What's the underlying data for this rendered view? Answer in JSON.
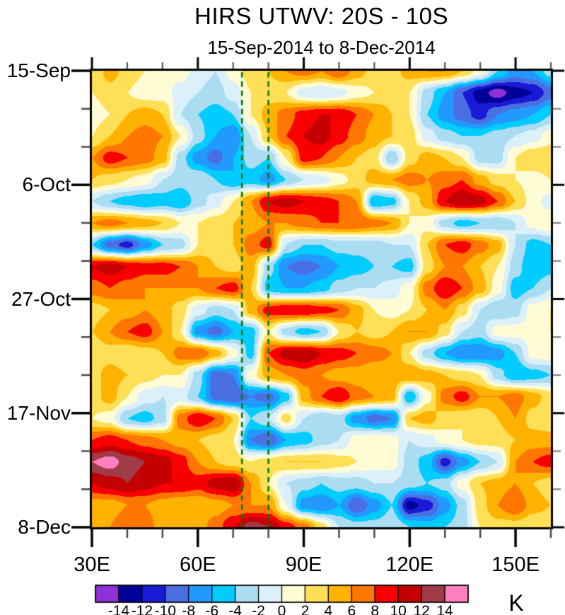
{
  "chart_data": {
    "type": "heatmap",
    "title": "HIRS UTWV: 20S - 10S",
    "subtitle": "15-Sep-2014 to 8-Dec-2014",
    "unit": "K",
    "x_axis": {
      "range_lon_east": [
        30,
        160
      ],
      "major_ticks": [
        {
          "lon": 30,
          "label": "30E"
        },
        {
          "lon": 60,
          "label": "60E"
        },
        {
          "lon": 90,
          "label": "90E"
        },
        {
          "lon": 120,
          "label": "120E"
        },
        {
          "lon": 150,
          "label": "150E"
        }
      ],
      "minor_ticks_lon": [
        40,
        50,
        70,
        80,
        100,
        110,
        130,
        140,
        160
      ]
    },
    "y_axis": {
      "range_days": [
        0,
        84
      ],
      "major_ticks": [
        {
          "day": 0,
          "label": "15-Sep"
        },
        {
          "day": 21,
          "label": "6-Oct"
        },
        {
          "day": 42,
          "label": "27-Oct"
        },
        {
          "day": 63,
          "label": "17-Nov"
        },
        {
          "day": 84,
          "label": "8-Dec"
        }
      ],
      "minor_ticks_days": [
        7,
        14,
        28,
        35,
        49,
        56,
        70,
        77
      ]
    },
    "levels": [
      -14,
      -12,
      -10,
      -8,
      -6,
      -4,
      -2,
      0,
      2,
      4,
      6,
      8,
      10,
      12,
      14
    ],
    "colorbar_labels": [
      "-14",
      "-12",
      "-10",
      "-8",
      "-6",
      "-4",
      "-2",
      "0",
      "2",
      "4",
      "6",
      "8",
      "10",
      "12",
      "14"
    ],
    "colors": [
      "#8F30D8",
      "#000099",
      "#1A1AD6",
      "#4A6FE3",
      "#2299FF",
      "#00CCFF",
      "#AADCF2",
      "#DCF0FA",
      "#FFFBD5",
      "#FFDF55",
      "#FFB300",
      "#FF7700",
      "#F90000",
      "#C40000",
      "#A03C46",
      "#FF7FC0"
    ],
    "legend_position": "bottom",
    "reference_lines": {
      "lons_east": [
        72.5,
        80.0
      ],
      "color": "#007C00",
      "style": "dashed"
    },
    "grid": {
      "lons_east": [
        30,
        35,
        40,
        45,
        50,
        55,
        60,
        65,
        70,
        75,
        80,
        85,
        90,
        95,
        100,
        105,
        110,
        115,
        120,
        125,
        130,
        135,
        140,
        145,
        150,
        155,
        160
      ],
      "dates": [
        "15-Sep",
        "19-Sep",
        "23-Sep",
        "27-Sep",
        "1-Oct",
        "5-Oct",
        "9-Oct",
        "13-Oct",
        "17-Oct",
        "21-Oct",
        "25-Oct",
        "29-Oct",
        "2-Nov",
        "6-Nov",
        "10-Nov",
        "14-Nov",
        "18-Nov",
        "22-Nov",
        "26-Nov",
        "30-Nov",
        "4-Dec",
        "8-Dec"
      ],
      "days": [
        0,
        4,
        8,
        12,
        16,
        20,
        24,
        28,
        32,
        36,
        40,
        44,
        48,
        52,
        56,
        60,
        64,
        68,
        72,
        76,
        80,
        84
      ],
      "values_K": [
        [
          2,
          5,
          3,
          2,
          1,
          1,
          -1,
          -2,
          1,
          3,
          4,
          6,
          7,
          6,
          8,
          5,
          3,
          3,
          5,
          6,
          6,
          4,
          1,
          -4,
          -7,
          -6,
          -3
        ],
        [
          2,
          3,
          2,
          1,
          1,
          -1,
          -2,
          -3,
          -1,
          2,
          3,
          2,
          -1,
          -2,
          -1,
          1,
          2,
          3,
          2,
          -3,
          -6,
          -10,
          -13,
          -15,
          -13,
          -12,
          -9
        ],
        [
          1,
          2,
          4,
          5,
          4,
          -2,
          -4,
          -5,
          -4,
          2,
          5,
          7,
          9,
          10,
          10,
          8,
          6,
          4,
          2,
          -4,
          -7,
          -9,
          -11,
          -8,
          -7,
          -6,
          -4
        ],
        [
          2,
          4,
          6,
          7,
          6,
          2,
          -3,
          -6,
          -8,
          -2,
          4,
          8,
          10,
          11,
          9,
          7,
          5,
          4,
          3,
          -1,
          -3,
          -4,
          -4,
          -3,
          -2,
          -1,
          1
        ],
        [
          6,
          9,
          8,
          7,
          5,
          -3,
          -7,
          -9,
          -6,
          -3,
          -4,
          2,
          9,
          8,
          6,
          4,
          3,
          -4,
          3,
          5,
          4,
          2,
          -3,
          -3,
          2,
          4,
          4
        ],
        [
          4,
          3,
          2,
          1,
          -2,
          -3,
          -2,
          -4,
          -6,
          -5,
          -7,
          -4,
          -2,
          -1,
          1,
          3,
          5,
          6,
          7,
          6,
          7,
          8,
          5,
          3,
          2,
          1,
          2
        ],
        [
          -2,
          -4,
          -5,
          -6,
          -5,
          -6,
          -3,
          -1,
          2,
          6,
          10,
          11,
          10,
          9,
          8,
          6,
          -6,
          -5,
          2,
          5,
          10,
          12,
          11,
          8,
          4,
          1,
          -1
        ],
        [
          6,
          7,
          6,
          5,
          4,
          2,
          2,
          3,
          4,
          5,
          6,
          6,
          7,
          8,
          8,
          8,
          7,
          6,
          2,
          1,
          -3,
          -5,
          -4,
          -4,
          -2,
          1,
          2
        ],
        [
          -4,
          -9,
          -11,
          -7,
          -4,
          -3,
          2,
          3,
          4,
          7,
          9,
          -2,
          -4,
          -4,
          -3,
          -3,
          -3,
          -2,
          -2,
          4,
          8,
          9,
          7,
          5,
          -2,
          -5,
          -4
        ],
        [
          10,
          11,
          10,
          9,
          9,
          8,
          6,
          4,
          3,
          5,
          -3,
          -8,
          -9,
          -8,
          -6,
          -5,
          -4,
          -4,
          -5,
          3,
          6,
          6,
          4,
          2,
          -3,
          -6,
          -5
        ],
        [
          7,
          8,
          7,
          6,
          6,
          6,
          6,
          8,
          9,
          4,
          -5,
          -6,
          -6,
          -5,
          -3,
          -2,
          -2,
          -1,
          1,
          7,
          10,
          8,
          5,
          1,
          -5,
          -4,
          -2
        ],
        [
          3,
          4,
          5,
          6,
          5,
          3,
          -1,
          -3,
          -2,
          5,
          9,
          10,
          10,
          9,
          8,
          5,
          2,
          1,
          2,
          4,
          6,
          3,
          -2,
          -4,
          -3,
          1,
          2
        ],
        [
          4,
          6,
          8,
          9,
          6,
          2,
          -7,
          -9,
          -6,
          -5,
          2,
          -3,
          -5,
          -4,
          2,
          4,
          3,
          4,
          6,
          6,
          3,
          -2,
          -3,
          1,
          1,
          1,
          2
        ],
        [
          2,
          3,
          2,
          3,
          4,
          7,
          8,
          5,
          1,
          -5,
          8,
          11,
          12,
          10,
          9,
          8,
          7,
          6,
          2,
          -3,
          -6,
          -8,
          -8,
          -7,
          -4,
          1,
          1
        ],
        [
          3,
          5,
          4,
          3,
          2,
          2,
          -3,
          -9,
          -8,
          1,
          5,
          6,
          7,
          6,
          5,
          5,
          4,
          5,
          6,
          5,
          4,
          3,
          2,
          -3,
          -6,
          -5,
          -4
        ],
        [
          3,
          5,
          2,
          -1,
          -2,
          -1,
          -4,
          -9,
          -10,
          -8,
          -9,
          -5,
          5,
          8,
          10,
          7,
          6,
          5,
          -6,
          1,
          7,
          9,
          6,
          6,
          7,
          5,
          3
        ],
        [
          2,
          1,
          -4,
          -5,
          -3,
          7,
          10,
          8,
          4,
          -4,
          -2,
          3,
          -2,
          -4,
          -3,
          -7,
          -9,
          -8,
          4,
          5,
          3,
          2,
          2,
          4,
          6,
          3,
          2
        ],
        [
          8,
          9,
          8,
          7,
          6,
          5,
          4,
          3,
          2,
          -8,
          -10,
          -6,
          -5,
          -3,
          -2,
          1,
          2,
          1,
          -2,
          -1,
          1,
          2,
          3,
          3,
          4,
          5,
          5
        ],
        [
          14,
          15,
          13,
          12,
          11,
          9,
          6,
          4,
          3,
          2,
          3,
          4,
          4,
          4,
          3,
          2,
          1,
          1,
          -3,
          -5,
          -11,
          -7,
          -4,
          -2,
          6,
          8,
          9
        ],
        [
          10,
          11,
          12,
          11,
          10,
          10,
          9,
          11,
          12,
          6,
          2,
          -2,
          -3,
          -4,
          -3,
          -3,
          -2,
          -2,
          -3,
          -4,
          -3,
          1,
          4,
          5,
          6,
          4,
          3
        ],
        [
          5,
          5,
          6,
          6,
          5,
          4,
          4,
          5,
          6,
          6,
          6,
          0,
          -7,
          -8,
          -6,
          -10,
          -7,
          -4,
          -13,
          -11,
          -7,
          -3,
          3,
          6,
          8,
          5,
          4
        ],
        [
          4,
          6,
          8,
          7,
          5,
          4,
          5,
          7,
          10,
          13,
          12,
          9,
          7,
          3,
          -2,
          -3,
          -3,
          -2,
          -4,
          -5,
          -4,
          -3,
          2,
          3,
          3,
          2,
          2
        ]
      ]
    }
  }
}
